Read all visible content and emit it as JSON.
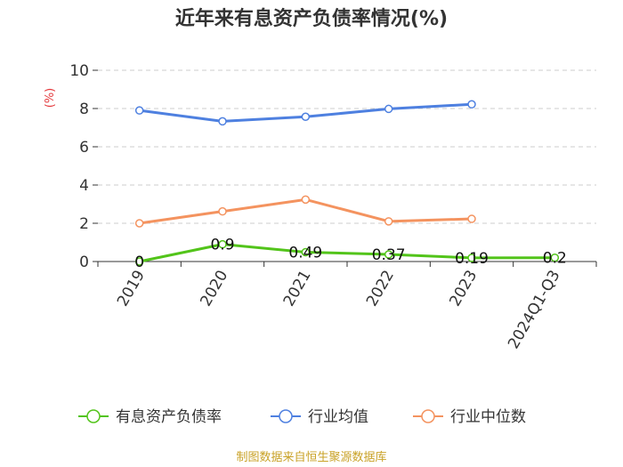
{
  "chart_data": {
    "type": "line",
    "title": "近年来有息资产负债率情况(%)",
    "ylabel": "(%)",
    "categories": [
      "2019",
      "2020",
      "2021",
      "2022",
      "2023",
      "2024Q1-Q3"
    ],
    "ylim": [
      0,
      10
    ],
    "yticks": [
      "0",
      "2",
      "4",
      "6",
      "8",
      "10"
    ],
    "grid": true,
    "legend_position": "bottom",
    "series": [
      {
        "name": "有息资产负债率",
        "color": "#52c41a",
        "values": [
          0,
          0.9,
          0.49,
          0.37,
          0.19,
          0.2
        ],
        "labels": [
          "0",
          "0.9",
          "0.49",
          "0.37",
          "0.19",
          "0.2"
        ]
      },
      {
        "name": "行业均值",
        "color": "#4e80e0",
        "values": [
          7.9,
          7.33,
          7.57,
          7.98,
          8.22,
          null
        ]
      },
      {
        "name": "行业中位数",
        "color": "#f4935f",
        "values": [
          2.0,
          2.62,
          3.24,
          2.1,
          2.23,
          null
        ]
      }
    ],
    "source": "制图数据来自恒生聚源数据库"
  }
}
